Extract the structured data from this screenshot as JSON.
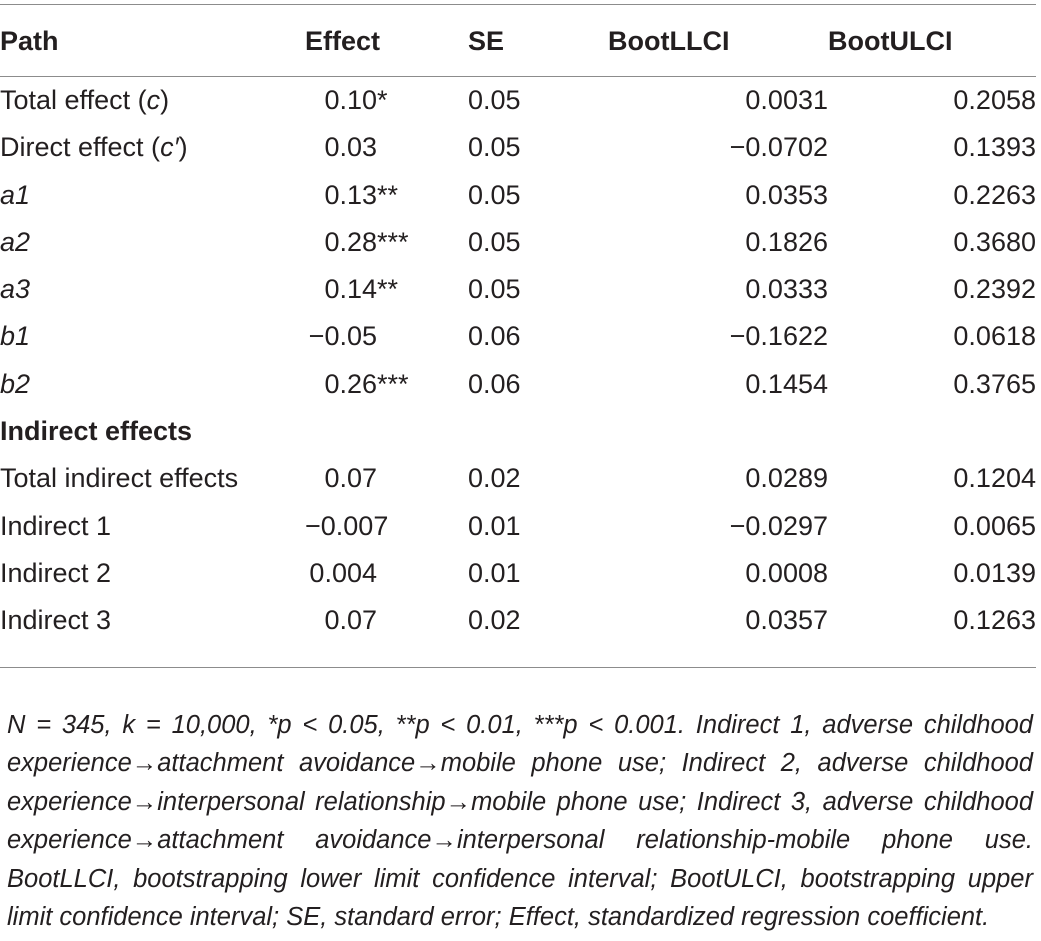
{
  "table": {
    "headers": {
      "path": "Path",
      "effect": "Effect",
      "se": "SE",
      "bootllci": "BootLLCI",
      "bootulci": "BootULCI"
    },
    "rows": [
      {
        "path_main": "Total effect (",
        "path_var": "c",
        "path_end": ")",
        "effect": "0.10",
        "sig": "*",
        "se": "0.05",
        "llci": "0.0031",
        "ulci": "0.2058"
      },
      {
        "path_main": "Direct effect (",
        "path_var": "c′",
        "path_end": ")",
        "effect": "0.03",
        "sig": "",
        "se": "0.05",
        "llci": "−0.0702",
        "ulci": "0.1393"
      },
      {
        "path": "a1",
        "effect": "0.13",
        "sig": "**",
        "se": "0.05",
        "llci": "0.0353",
        "ulci": "0.2263"
      },
      {
        "path": "a2",
        "effect": "0.28",
        "sig": "***",
        "se": "0.05",
        "llci": "0.1826",
        "ulci": "0.3680"
      },
      {
        "path": "a3",
        "effect": "0.14",
        "sig": "**",
        "se": "0.05",
        "llci": "0.0333",
        "ulci": "0.2392"
      },
      {
        "path": "b1",
        "effect": "−0.05",
        "sig": "",
        "se": "0.06",
        "llci": "−0.1622",
        "ulci": "0.0618"
      },
      {
        "path": "b2",
        "effect": "0.26",
        "sig": "***",
        "se": "0.06",
        "llci": "0.1454",
        "ulci": "0.3765"
      }
    ],
    "section_label": "Indirect effects",
    "indirect_rows": [
      {
        "path": "Total indirect effects",
        "effect": "0.07",
        "se": "0.02",
        "llci": "0.0289",
        "ulci": "0.1204"
      },
      {
        "path": "Indirect 1",
        "effect": "−0.007",
        "se": "0.01",
        "llci": "−0.0297",
        "ulci": "0.0065"
      },
      {
        "path": "Indirect 2",
        "effect": "0.004",
        "se": "0.01",
        "llci": "0.0008",
        "ulci": "0.0139"
      },
      {
        "path": "Indirect 3",
        "effect": "0.07",
        "se": "0.02",
        "llci": "0.0357",
        "ulci": "0.1263"
      }
    ]
  },
  "footnote": "N = 345, k = 10,000, *p < 0.05, **p < 0.01, ***p < 0.001. Indirect 1, adverse childhood experience→attachment avoidance→mobile phone use; Indirect 2, adverse childhood experience→interpersonal relationship→mobile phone use; Indirect 3, adverse childhood experience→attachment avoidance→interpersonal relationship-mobile phone use. BootLLCI, bootstrapping lower limit confidence interval; BootULCI, bootstrapping upper limit confidence interval; SE, standard error; Effect, standardized regression coefficient."
}
